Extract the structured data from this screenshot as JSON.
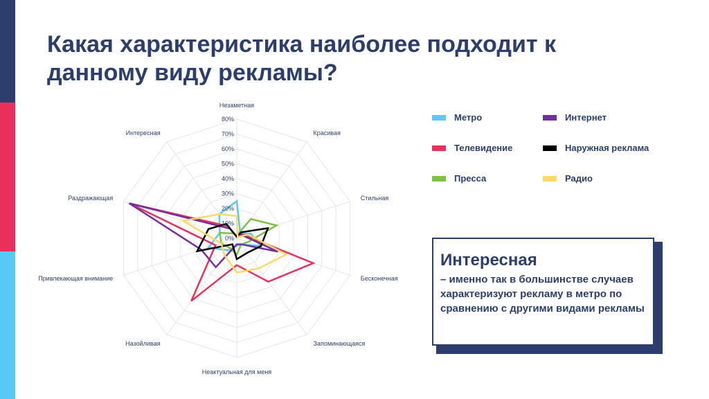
{
  "slide": {
    "title_line1": "Какая характеристика наиболее подходит к",
    "title_line2": "данному виду рекламы?",
    "callout_title": "Интересная",
    "callout_text": "– именно так в большинстве случаев характеризуют рекламу в метро по сравнению с другими видами рекламы"
  },
  "chart_data": {
    "type": "radar",
    "axes": [
      "Незаметная",
      "Красивая",
      "Стильная",
      "Бесконечная",
      "Запоминающаяся",
      "Неактуальная для меня",
      "Назойливая",
      "Привлекающая внимание",
      "Раздражающая",
      "Интересная"
    ],
    "radial_ticks": [
      "0%",
      "10%",
      "20%",
      "30%",
      "40%",
      "50%",
      "60%",
      "70%",
      "80%"
    ],
    "rmax": 80,
    "grid": true,
    "legend_position": "right",
    "series": [
      {
        "name": "Метро",
        "color": "#5bc8f5",
        "values": [
          25,
          4,
          10,
          17,
          5,
          5,
          10,
          20,
          12,
          20
        ]
      },
      {
        "name": "Телевидение",
        "color": "#e8305a",
        "values": [
          1,
          4,
          6,
          54,
          36,
          18,
          52,
          15,
          76,
          10
        ]
      },
      {
        "name": "Пресса",
        "color": "#7dc242",
        "values": [
          2,
          16,
          28,
          8,
          5,
          11,
          8,
          11,
          12,
          4
        ]
      },
      {
        "name": "Интернет",
        "color": "#7030a0",
        "values": [
          1,
          3,
          5,
          29,
          5,
          4,
          24,
          25,
          76,
          8
        ]
      },
      {
        "name": "Наружная реклама",
        "color": "#000000",
        "values": [
          1,
          5,
          22,
          17,
          12,
          14,
          5,
          28,
          20,
          12
        ]
      },
      {
        "name": "Радио",
        "color": "#ffd966",
        "values": [
          15,
          1,
          8,
          35,
          25,
          23,
          14,
          11,
          38,
          20
        ]
      }
    ]
  }
}
